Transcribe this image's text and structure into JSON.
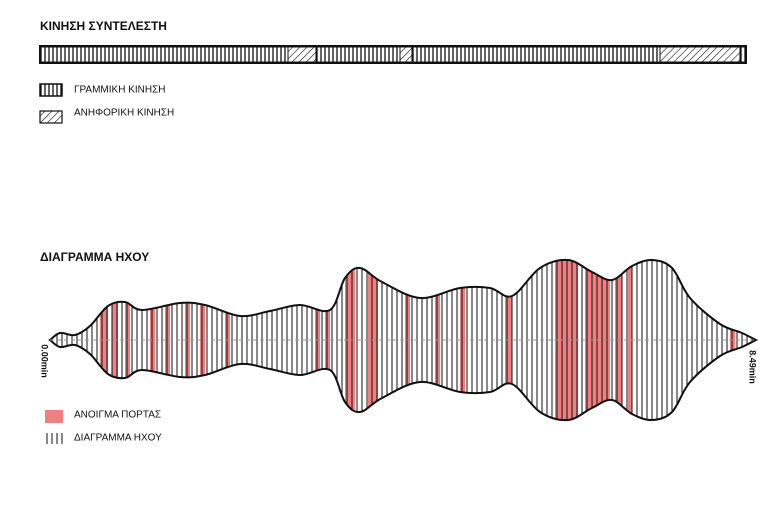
{
  "movement": {
    "title": "ΚΙΝΗΣΗ ΣΥΝΤΕΛΕΣΤΗ",
    "legend": [
      {
        "label": "ΓΡΑΜΜΙΚΗ ΚΙΝΗΣΗ"
      },
      {
        "label": "ΑΝΗΦΟΡΙΚΗ ΚΙΝΗΣΗ"
      }
    ]
  },
  "sound": {
    "title": "ΔΙΑΓΡΑΜΜΑ ΗΧΟΥ",
    "start_label": "0.00min",
    "end_label": "8.49min",
    "legend": [
      {
        "label": "ΑΝΟΙΓΜΑ ΠΟΡΤΑΣ"
      },
      {
        "label": "ΔΙΑΓΡΑΜΜΑ ΗΧΟΥ"
      }
    ]
  }
}
